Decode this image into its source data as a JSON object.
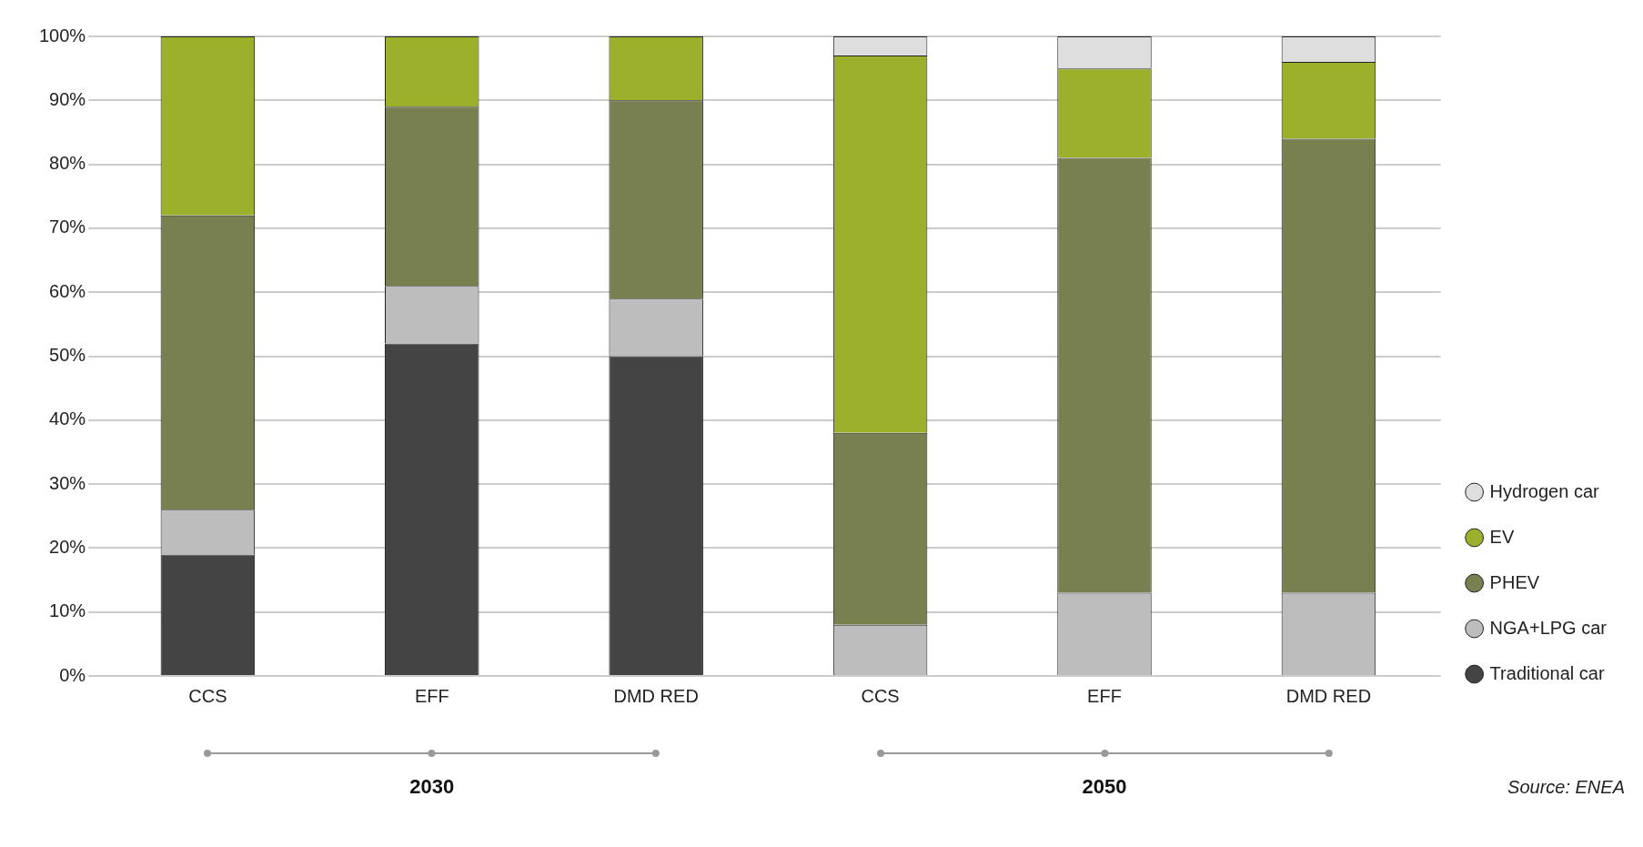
{
  "chart_data": {
    "type": "bar",
    "stacked": true,
    "categories": [
      "CCS",
      "EFF",
      "DMD RED",
      "CCS",
      "EFF",
      "DMD RED"
    ],
    "series": [
      {
        "name": "Traditional car",
        "color": "#444444",
        "values": [
          19,
          52,
          50,
          0,
          0,
          0
        ]
      },
      {
        "name": "NGA+LPG car",
        "color": "#bdbdbd",
        "values": [
          7,
          9,
          9,
          8,
          13,
          13
        ]
      },
      {
        "name": "PHEV",
        "color": "#788050",
        "values": [
          46,
          28,
          31,
          30,
          68,
          71
        ]
      },
      {
        "name": "EV",
        "color": "#9cb02c",
        "values": [
          28,
          11,
          10,
          59,
          14,
          12
        ]
      },
      {
        "name": "Hydrogen car",
        "color": "#dedede",
        "values": [
          0,
          0,
          0,
          3,
          5,
          4
        ]
      }
    ],
    "ylim": [
      0,
      100
    ],
    "yticks": [
      {
        "value": 0,
        "label": "0%"
      },
      {
        "value": 10,
        "label": "10%"
      },
      {
        "value": 20,
        "label": "20%"
      },
      {
        "value": 30,
        "label": "30%"
      },
      {
        "value": 40,
        "label": "40%"
      },
      {
        "value": 50,
        "label": "50%"
      },
      {
        "value": 60,
        "label": "60%"
      },
      {
        "value": 70,
        "label": "70%"
      },
      {
        "value": 80,
        "label": "80%"
      },
      {
        "value": 90,
        "label": "90%"
      },
      {
        "value": 100,
        "label": "100%"
      }
    ],
    "grid": "y",
    "legend": "bottom right",
    "annotations": [
      "2030",
      "2050",
      "Source: ENEA"
    ]
  }
}
